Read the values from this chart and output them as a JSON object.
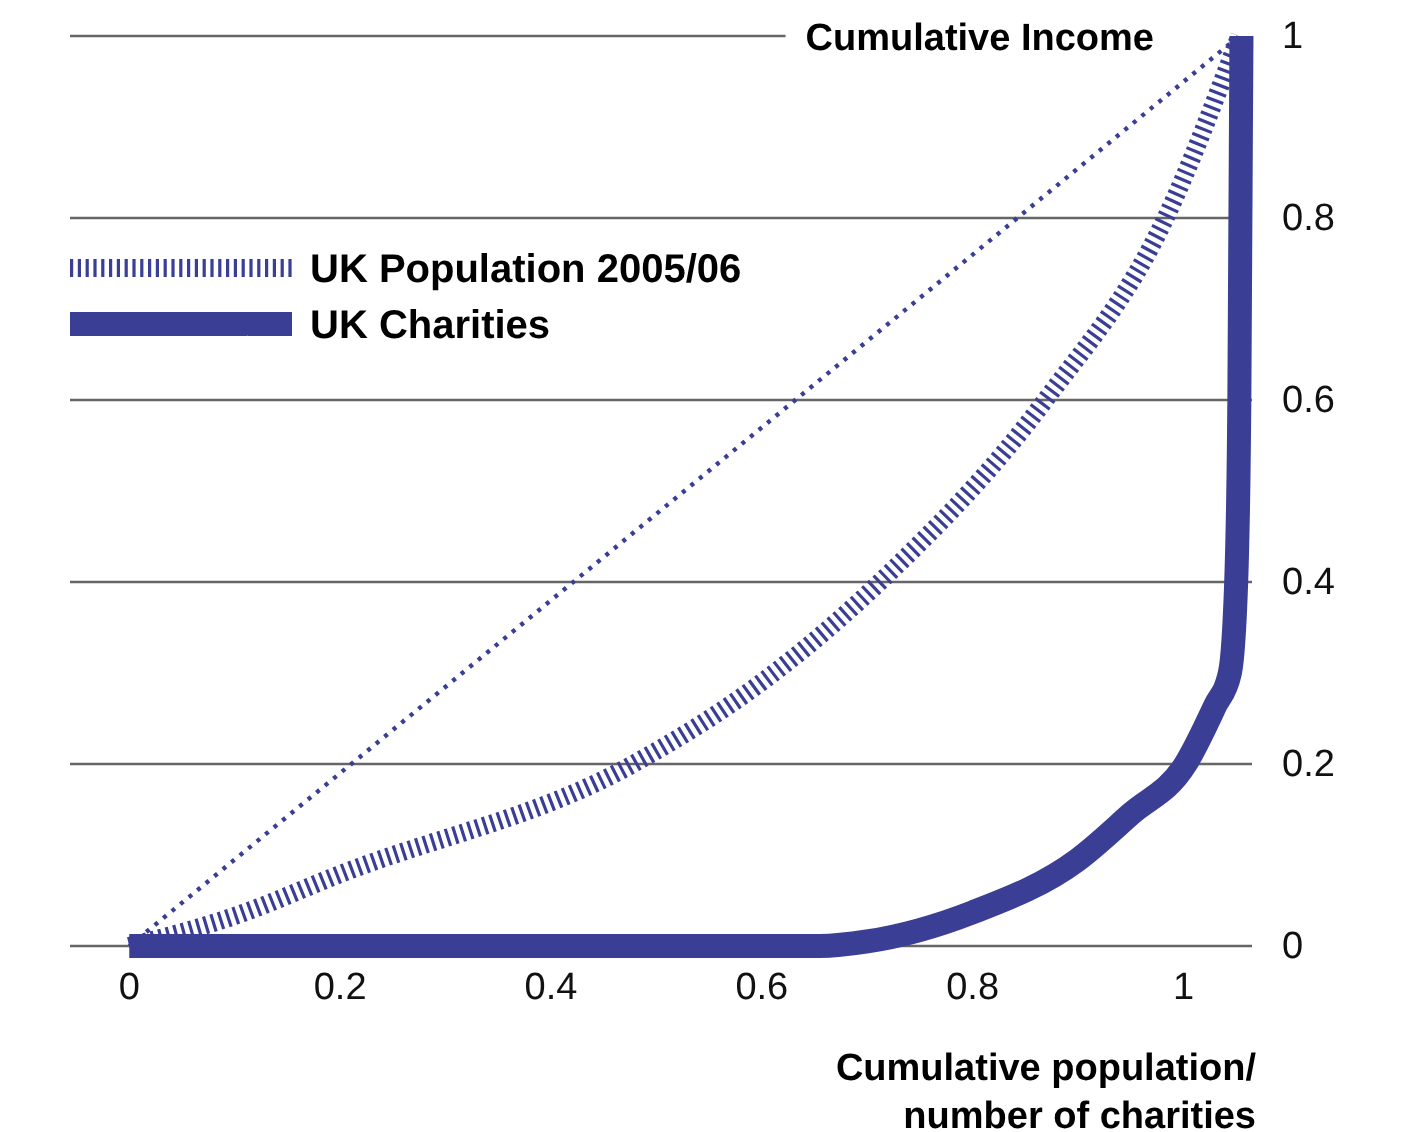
{
  "chart_data": {
    "type": "line",
    "ylabel": "Cumulative Income",
    "xlabel": "Cumulative population/\nnumber of charities",
    "xlim": [
      -0.06,
      1.065
    ],
    "ylim": [
      0,
      1
    ],
    "xticks": [
      0,
      0.2,
      0.4,
      0.6,
      0.8,
      1
    ],
    "yticks": [
      0,
      0.2,
      0.4,
      0.6,
      0.8,
      1
    ],
    "grid": "y",
    "legend": "top left",
    "marker": "none",
    "series": [
      {
        "color": "#3a3f95",
        "line_style": "dotted",
        "x": [
          0,
          1.053
        ],
        "values": [
          0,
          1
        ]
      },
      {
        "name": "UK Population 2005/06",
        "color": "#3a3f95",
        "line_style": "dashed",
        "x": [
          0,
          0.1,
          0.2,
          0.478,
          0.6,
          0.712,
          0.869,
          0.983,
          1.053
        ],
        "values": [
          0,
          0.033,
          0.079,
          0.2,
          0.29,
          0.4,
          0.6,
          0.8,
          1
        ]
      },
      {
        "name": "UK Charities",
        "color": "#3a3f95",
        "line_style": "solid",
        "x": [
          0,
          0.3,
          0.655,
          0.7,
          0.8,
          0.9,
          0.95,
          1.002,
          1.03,
          1.044,
          1.05,
          1.053,
          1.055
        ],
        "values": [
          0,
          0,
          0,
          0.005,
          0.037,
          0.095,
          0.145,
          0.2,
          0.264,
          0.3,
          0.4,
          0.6,
          1
        ]
      }
    ]
  }
}
